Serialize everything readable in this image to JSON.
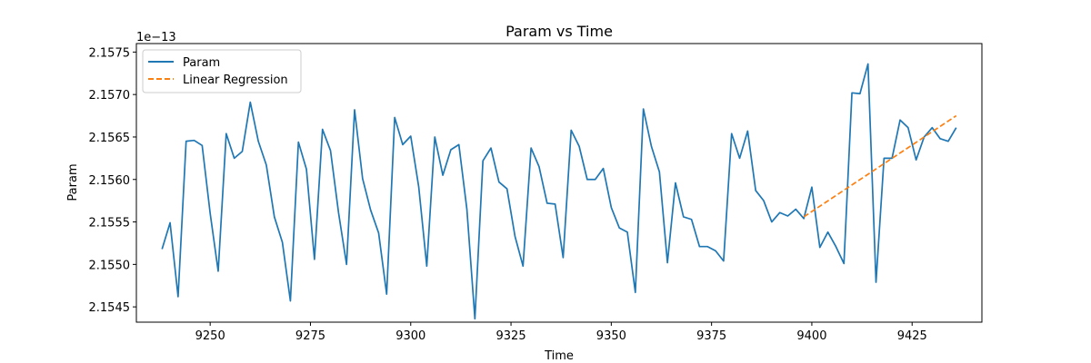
{
  "chart_data": {
    "type": "line",
    "title": "Param vs Time",
    "xlabel": "Time",
    "ylabel": "Param",
    "y_offset_label": "1e−13",
    "y_scale_exponent": -13,
    "xlim": [
      9231.6,
      9442.4
    ],
    "ylim": [
      2.15432,
      2.1576
    ],
    "x_ticks": [
      9250,
      9275,
      9300,
      9325,
      9350,
      9375,
      9400,
      9425
    ],
    "x_tick_labels": [
      "9250",
      "9275",
      "9300",
      "9325",
      "9350",
      "9375",
      "9400",
      "9425"
    ],
    "y_ticks": [
      2.1545,
      2.155,
      2.1555,
      2.156,
      2.1565,
      2.157,
      2.1575
    ],
    "y_tick_labels": [
      "2.1545",
      "2.1550",
      "2.1555",
      "2.1560",
      "2.1565",
      "2.1570",
      "2.1575"
    ],
    "grid": false,
    "legend_position": "top-left",
    "series": [
      {
        "name": "Param",
        "color": "#1f77b4",
        "style": "solid",
        "x": [
          9238,
          9240,
          9242,
          9244,
          9246,
          9248,
          9250,
          9252,
          9254,
          9256,
          9258,
          9260,
          9262,
          9264,
          9266,
          9268,
          9270,
          9272,
          9274,
          9276,
          9278,
          9280,
          9282,
          9284,
          9286,
          9288,
          9290,
          9292,
          9294,
          9296,
          9298,
          9300,
          9302,
          9304,
          9306,
          9308,
          9310,
          9312,
          9314,
          9316,
          9318,
          9320,
          9322,
          9324,
          9326,
          9328,
          9330,
          9332,
          9334,
          9336,
          9338,
          9340,
          9342,
          9344,
          9346,
          9348,
          9350,
          9352,
          9354,
          9356,
          9358,
          9360,
          9362,
          9364,
          9366,
          9368,
          9370,
          9372,
          9374,
          9376,
          9378,
          9380,
          9382,
          9384,
          9386,
          9388,
          9390,
          9392,
          9394,
          9396,
          9398,
          9400,
          9402,
          9404,
          9406,
          9408,
          9410,
          9412,
          9414,
          9416,
          9418,
          9420,
          9422,
          9424,
          9426,
          9428,
          9430,
          9432,
          9434,
          9436
        ],
        "values": [
          2.15518,
          2.15549,
          2.15462,
          2.15645,
          2.15646,
          2.1564,
          2.1556,
          2.15492,
          2.15654,
          2.15625,
          2.15633,
          2.15691,
          2.15645,
          2.15617,
          2.15556,
          2.15526,
          2.15457,
          2.15644,
          2.15612,
          2.15506,
          2.15659,
          2.15634,
          2.15561,
          2.155,
          2.15682,
          2.15601,
          2.15564,
          2.15537,
          2.15465,
          2.15673,
          2.15641,
          2.15651,
          2.15591,
          2.15498,
          2.1565,
          2.15605,
          2.15635,
          2.15641,
          2.15565,
          2.15436,
          2.15622,
          2.15637,
          2.15597,
          2.15589,
          2.15533,
          2.15498,
          2.15637,
          2.15615,
          2.15572,
          2.15571,
          2.15508,
          2.15658,
          2.15639,
          2.156,
          2.156,
          2.15613,
          2.15567,
          2.15543,
          2.15538,
          2.15467,
          2.15683,
          2.15639,
          2.15609,
          2.15502,
          2.15596,
          2.15556,
          2.15553,
          2.15521,
          2.15521,
          2.15516,
          2.15504,
          2.15654,
          2.15625,
          2.15657,
          2.15587,
          2.15575,
          2.1555,
          2.15561,
          2.15557,
          2.15565,
          2.15554,
          2.15591,
          2.1552,
          2.15538,
          2.15521,
          2.15501,
          2.15702,
          2.15701,
          2.15736,
          2.15479,
          2.15625,
          2.15625,
          2.1567,
          2.15661,
          2.15623,
          2.1565,
          2.15661,
          2.15648,
          2.15645,
          2.15661
        ]
      },
      {
        "name": "Linear Regression",
        "color": "#ff7f0e",
        "style": "dashed",
        "x": [
          9398,
          9436
        ],
        "values": [
          2.15556,
          2.15675
        ]
      }
    ]
  }
}
